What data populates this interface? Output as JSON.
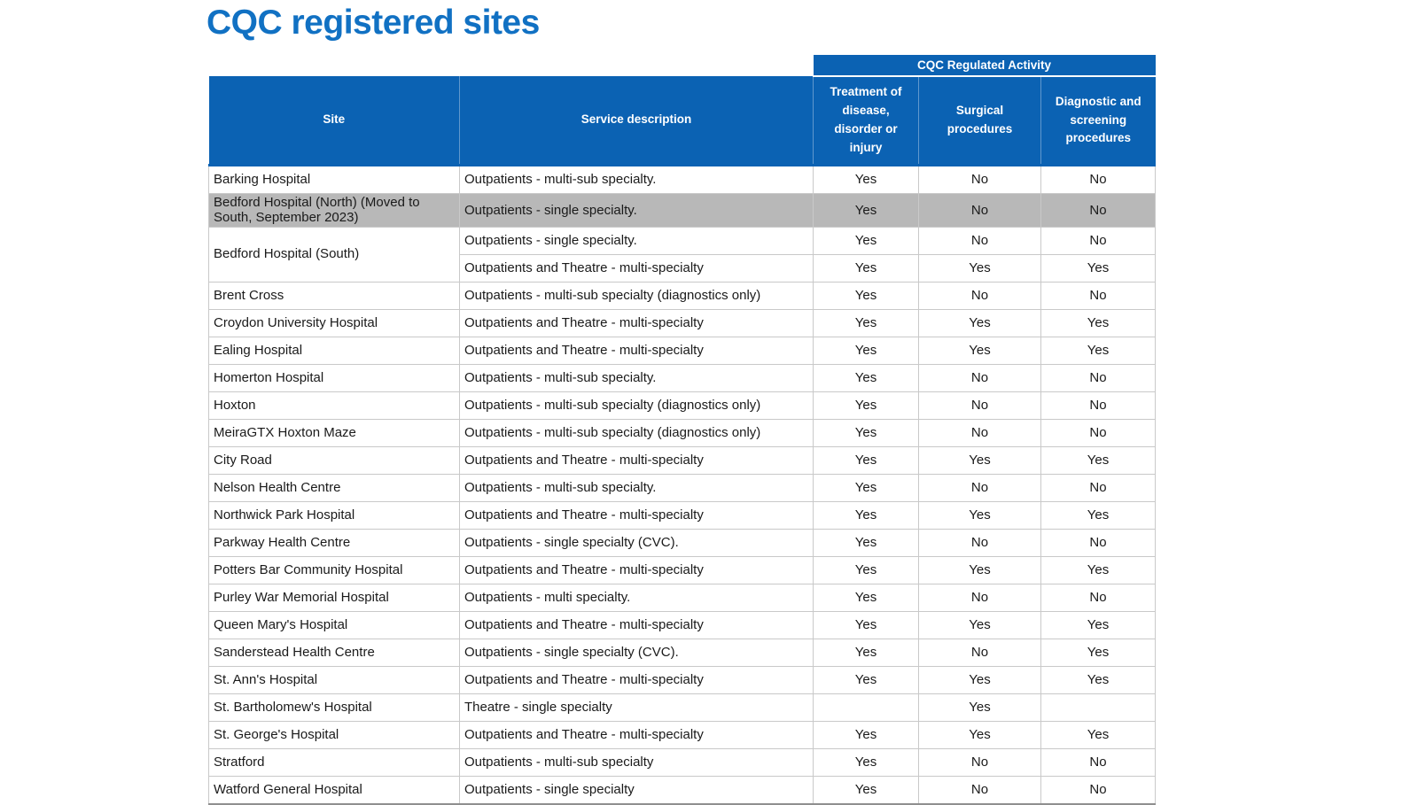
{
  "title": "CQC registered sites",
  "colors": {
    "title_text": "#1171C3",
    "header_background": "#0B62B3",
    "header_text": "#FFFFFF",
    "highlighted_row_background": "#B8B8B8",
    "grid_line": "#C9C9C9",
    "body_text": "#1A1A1A"
  },
  "table": {
    "band_label": "CQC Regulated Activity",
    "columns": [
      {
        "key": "site",
        "label": "Site"
      },
      {
        "key": "service",
        "label": "Service description"
      },
      {
        "key": "treatment",
        "label": "Treatment of disease, disorder or injury"
      },
      {
        "key": "surgical",
        "label": "Surgical procedures"
      },
      {
        "key": "diagnostic",
        "label": "Diagnostic and screening procedures"
      }
    ],
    "rows": [
      {
        "site": "Barking Hospital",
        "service": "Outpatients - multi-sub specialty.",
        "treatment": "Yes",
        "surgical": "No",
        "diagnostic": "No"
      },
      {
        "site": "Bedford Hospital (North) (Moved to South, September 2023)",
        "service": "Outpatients - single specialty.",
        "treatment": "Yes",
        "surgical": "No",
        "diagnostic": "No",
        "gray": true
      },
      {
        "site": "Bedford Hospital (South)",
        "rowspan": 2,
        "service": "Outpatients - single specialty.",
        "treatment": "Yes",
        "surgical": "No",
        "diagnostic": "No"
      },
      {
        "site": null,
        "service": "Outpatients and Theatre - multi-specialty",
        "treatment": "Yes",
        "surgical": "Yes",
        "diagnostic": "Yes"
      },
      {
        "site": "Brent Cross",
        "service": "Outpatients - multi-sub specialty (diagnostics only)",
        "treatment": "Yes",
        "surgical": "No",
        "diagnostic": "No"
      },
      {
        "site": "Croydon University Hospital",
        "service": "Outpatients and Theatre - multi-specialty",
        "treatment": "Yes",
        "surgical": "Yes",
        "diagnostic": "Yes"
      },
      {
        "site": "Ealing Hospital",
        "service": "Outpatients and Theatre - multi-specialty",
        "treatment": "Yes",
        "surgical": "Yes",
        "diagnostic": "Yes"
      },
      {
        "site": "Homerton Hospital",
        "service": "Outpatients - multi-sub specialty.",
        "treatment": "Yes",
        "surgical": "No",
        "diagnostic": "No"
      },
      {
        "site": "Hoxton",
        "service": "Outpatients - multi-sub specialty (diagnostics only)",
        "treatment": "Yes",
        "surgical": "No",
        "diagnostic": "No"
      },
      {
        "site": "MeiraGTX Hoxton Maze",
        "service": "Outpatients - multi-sub specialty (diagnostics only)",
        "treatment": "Yes",
        "surgical": "No",
        "diagnostic": "No"
      },
      {
        "site": "City Road",
        "service": "Outpatients and Theatre - multi-specialty",
        "treatment": "Yes",
        "surgical": "Yes",
        "diagnostic": "Yes"
      },
      {
        "site": "Nelson Health Centre",
        "service": "Outpatients - multi-sub specialty.",
        "treatment": "Yes",
        "surgical": "No",
        "diagnostic": "No"
      },
      {
        "site": "Northwick Park Hospital",
        "service": "Outpatients and Theatre - multi-specialty",
        "treatment": "Yes",
        "surgical": "Yes",
        "diagnostic": "Yes"
      },
      {
        "site": "Parkway Health Centre",
        "service": "Outpatients - single specialty (CVC).",
        "treatment": "Yes",
        "surgical": "No",
        "diagnostic": "No"
      },
      {
        "site": "Potters Bar Community Hospital",
        "service": "Outpatients and Theatre - multi-specialty",
        "treatment": "Yes",
        "surgical": "Yes",
        "diagnostic": "Yes"
      },
      {
        "site": "Purley War Memorial Hospital",
        "service": "Outpatients - multi specialty.",
        "treatment": "Yes",
        "surgical": "No",
        "diagnostic": "No"
      },
      {
        "site": "Queen Mary's Hospital",
        "service": "Outpatients and Theatre - multi-specialty",
        "treatment": "Yes",
        "surgical": "Yes",
        "diagnostic": "Yes"
      },
      {
        "site": "Sanderstead Health Centre",
        "service": "Outpatients - single specialty (CVC).",
        "treatment": "Yes",
        "surgical": "No",
        "diagnostic": "Yes"
      },
      {
        "site": "St. Ann's Hospital",
        "service": "Outpatients and Theatre - multi-specialty",
        "treatment": "Yes",
        "surgical": "Yes",
        "diagnostic": "Yes"
      },
      {
        "site": "St. Bartholomew's Hospital",
        "service": "Theatre - single specialty",
        "treatment": "",
        "surgical": "Yes",
        "diagnostic": ""
      },
      {
        "site": "St. George's Hospital",
        "service": "Outpatients and Theatre - multi-specialty",
        "treatment": "Yes",
        "surgical": "Yes",
        "diagnostic": "Yes"
      },
      {
        "site": "Stratford",
        "service": "Outpatients - multi-sub specialty",
        "treatment": "Yes",
        "surgical": "No",
        "diagnostic": "No"
      },
      {
        "site": "Watford General Hospital",
        "service": "Outpatients - single specialty",
        "treatment": "Yes",
        "surgical": "No",
        "diagnostic": "No"
      }
    ]
  }
}
